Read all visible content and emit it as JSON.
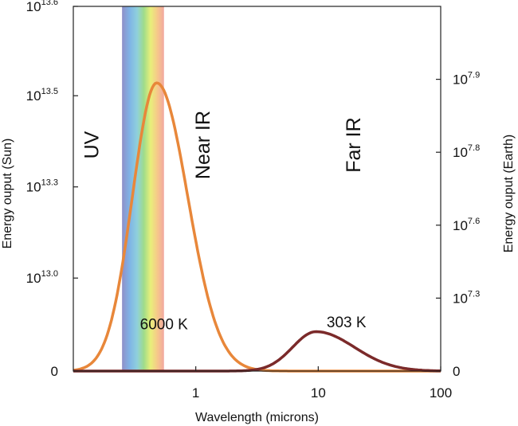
{
  "chart_data": {
    "type": "line",
    "title": "",
    "xlabel": "Wavelength (microns)",
    "ylabel_left": "Energy ouput (Sun)",
    "ylabel_right": "Energy ouput (Earth)",
    "x_scale": "log",
    "xlim": [
      0.1,
      100
    ],
    "x_ticks": [
      {
        "value": 1,
        "label": "1"
      },
      {
        "value": 10,
        "label": "10"
      },
      {
        "value": 100,
        "label": "100"
      }
    ],
    "y_left_ticks": [
      {
        "frac": 0,
        "base": "0",
        "exp": ""
      },
      {
        "frac": 0.255,
        "base": "10",
        "exp": "13.0"
      },
      {
        "frac": 0.505,
        "base": "10",
        "exp": "13.3"
      },
      {
        "frac": 0.755,
        "base": "10",
        "exp": "13.5"
      },
      {
        "frac": 1.0,
        "base": "10",
        "exp": "13.6"
      }
    ],
    "y_right_ticks": [
      {
        "frac": 0,
        "base": "0",
        "exp": ""
      },
      {
        "frac": 0.2,
        "base": "10",
        "exp": "7.3"
      },
      {
        "frac": 0.4,
        "base": "10",
        "exp": "7.6"
      },
      {
        "frac": 0.6,
        "base": "10",
        "exp": "7.8"
      },
      {
        "frac": 0.8,
        "base": "10",
        "exp": "7.9"
      }
    ],
    "regions": [
      {
        "label": "UV",
        "x": 0.16
      },
      {
        "label": "Near IR",
        "x": 1.3
      },
      {
        "label": "Far IR",
        "x": 22
      }
    ],
    "visible_band": {
      "xmin": 0.25,
      "xmax": 0.55
    },
    "series": [
      {
        "name": "Sun",
        "label": "6000 K",
        "color": "#e8873a",
        "peak_x": 0.48,
        "peak_frac": 0.79,
        "sigma_ln": 0.52,
        "tail": 0.12,
        "label_x": 0.55,
        "label_frac": 0.115
      },
      {
        "name": "Earth",
        "label": "303 K",
        "color": "#7b2a2a",
        "peak_x": 9.6,
        "peak_frac": 0.108,
        "sigma_ln": 0.58,
        "tail": 0.24,
        "label_x": 17,
        "label_frac": 0.12
      }
    ]
  }
}
